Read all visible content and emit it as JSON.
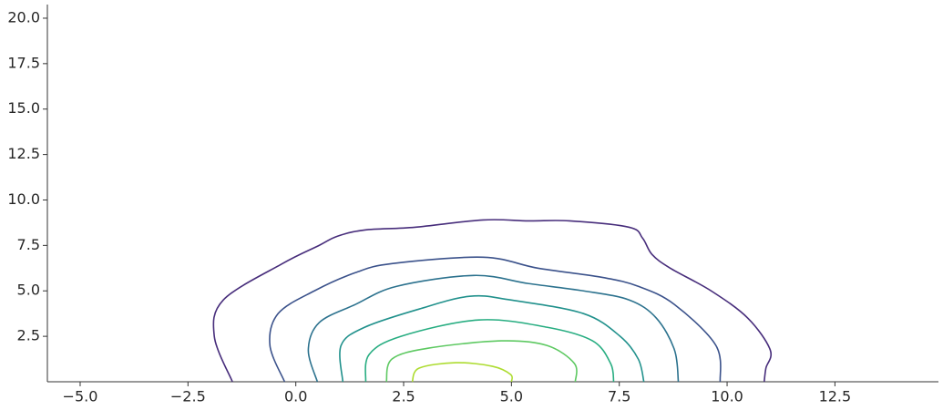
{
  "chart_data": {
    "type": "contour",
    "xlim": [
      -5.76,
      14.9
    ],
    "ylim": [
      0,
      20.75
    ],
    "xticks": [
      {
        "value": -5,
        "label": "−5.0"
      },
      {
        "value": -2.5,
        "label": "−2.5"
      },
      {
        "value": 0,
        "label": "0.0"
      },
      2.5,
      {
        "value": 5,
        "label": "5.0"
      },
      7.5,
      {
        "value": 10,
        "label": "10.0"
      },
      12.5
    ],
    "yticks": [
      2.5,
      {
        "value": 5,
        "label": "5.0"
      },
      7.5,
      {
        "value": 10,
        "label": "10.0"
      },
      12.5,
      {
        "value": 15,
        "label": "15.0"
      },
      17.5,
      {
        "value": 20,
        "label": "20.0"
      }
    ],
    "series": [
      {
        "color": "#472d7b",
        "x": [
          -1.47,
          -1.89,
          -1.68,
          -0.31,
          0.54,
          0.96,
          1.6,
          2.76,
          4.34,
          5.4,
          6.35,
          7.73,
          8.04,
          8.26,
          8.68,
          9.63,
          10.48,
          11.0,
          10.9,
          10.86
        ],
        "values": [
          0,
          2.5,
          4.5,
          6.5,
          7.5,
          8,
          8.35,
          8.5,
          8.9,
          8.85,
          8.85,
          8.5,
          7.9,
          7,
          6.25,
          5,
          3.5,
          1.75,
          0.75,
          0
        ]
      },
      {
        "color": "#3b528b",
        "x": [
          -0.26,
          -0.6,
          -0.41,
          0.43,
          1.38,
          2.23,
          4.34,
          5.61,
          7.09,
          7.94,
          8.78,
          9.74,
          9.84
        ],
        "values": [
          0,
          2,
          3.75,
          5,
          6,
          6.5,
          6.85,
          6.25,
          5.75,
          5.25,
          4.25,
          2,
          0
        ]
      },
      {
        "color": "#2c728e",
        "x": [
          0.5,
          0.29,
          0.54,
          1.38,
          2.34,
          4.13,
          5.4,
          6.67,
          7.73,
          8.36,
          8.78,
          8.87
        ],
        "values": [
          0,
          1.75,
          3.25,
          4.25,
          5.25,
          5.85,
          5.4,
          5,
          4.5,
          3.5,
          1.75,
          0
        ]
      },
      {
        "color": "#21918c",
        "x": [
          1.09,
          1.05,
          1.6,
          2.86,
          4.03,
          4.98,
          6.67,
          7.52,
          7.94,
          8.07
        ],
        "values": [
          0,
          2,
          3,
          4,
          4.7,
          4.5,
          3.75,
          2.5,
          1.25,
          0
        ]
      },
      {
        "color": "#27ad81",
        "x": [
          1.62,
          1.7,
          2.44,
          4.24,
          5.82,
          6.88,
          7.3,
          7.37
        ],
        "values": [
          0,
          1.5,
          2.5,
          3.4,
          3,
          2.25,
          1,
          0
        ]
      },
      {
        "color": "#5ec962",
        "x": [
          2.1,
          2.23,
          3.08,
          4.77,
          5.82,
          6.46,
          6.48
        ],
        "values": [
          0,
          1.25,
          1.85,
          2.25,
          2,
          1,
          0
        ]
      },
      {
        "color": "#addc30",
        "x": [
          2.7,
          2.86,
          3.71,
          4.56,
          4.98,
          5.0
        ],
        "values": [
          0,
          0.75,
          1.05,
          0.85,
          0.4,
          0
        ]
      }
    ]
  }
}
